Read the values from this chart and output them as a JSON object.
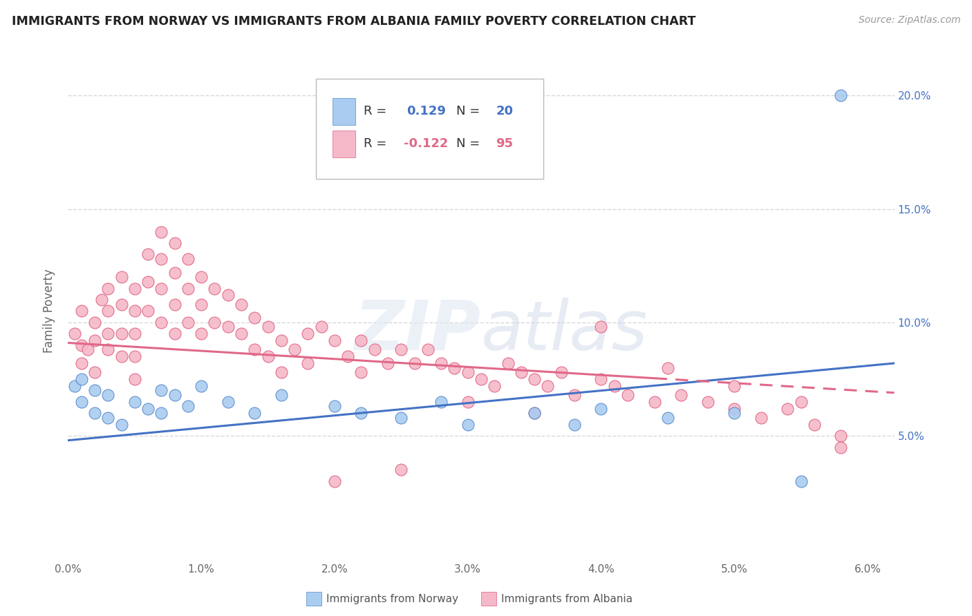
{
  "title": "IMMIGRANTS FROM NORWAY VS IMMIGRANTS FROM ALBANIA FAMILY POVERTY CORRELATION CHART",
  "source": "Source: ZipAtlas.com",
  "xlabel_norway": "Immigrants from Norway",
  "xlabel_albania": "Immigrants from Albania",
  "ylabel": "Family Poverty",
  "xlim": [
    0.0,
    0.062
  ],
  "ylim": [
    -0.005,
    0.215
  ],
  "xticks": [
    0.0,
    0.01,
    0.02,
    0.03,
    0.04,
    0.05,
    0.06
  ],
  "xticklabels": [
    "0.0%",
    "1.0%",
    "2.0%",
    "3.0%",
    "4.0%",
    "5.0%",
    "6.0%"
  ],
  "yticks": [
    0.05,
    0.1,
    0.15,
    0.2
  ],
  "yticklabels": [
    "5.0%",
    "10.0%",
    "15.0%",
    "20.0%"
  ],
  "norway_color": "#aaccf0",
  "albania_color": "#f5b8c8",
  "norway_edge_color": "#5588cc",
  "albania_edge_color": "#e06080",
  "norway_line_color": "#4472c4",
  "albania_line_color": "#e06888",
  "grid_color": "#d8d8d8",
  "background_color": "#ffffff",
  "watermark": "ZIPatlas",
  "norway_line_x0": 0.0,
  "norway_line_x1": 0.062,
  "norway_line_y0": 0.048,
  "norway_line_y1": 0.082,
  "albania_line_x0": 0.0,
  "albania_line_x1": 0.062,
  "albania_line_y0": 0.091,
  "albania_line_y1": 0.069,
  "norway_x": [
    0.0005,
    0.001,
    0.001,
    0.002,
    0.002,
    0.003,
    0.003,
    0.004,
    0.005,
    0.006,
    0.007,
    0.007,
    0.008,
    0.009,
    0.01,
    0.012,
    0.014,
    0.016,
    0.02,
    0.022,
    0.025,
    0.028,
    0.03,
    0.035,
    0.038,
    0.04,
    0.045,
    0.05,
    0.055,
    0.058
  ],
  "norway_y": [
    0.072,
    0.065,
    0.075,
    0.06,
    0.07,
    0.058,
    0.068,
    0.055,
    0.065,
    0.062,
    0.07,
    0.06,
    0.068,
    0.063,
    0.072,
    0.065,
    0.06,
    0.068,
    0.063,
    0.06,
    0.058,
    0.065,
    0.055,
    0.06,
    0.055,
    0.062,
    0.058,
    0.06,
    0.03,
    0.2
  ],
  "albania_x": [
    0.0005,
    0.001,
    0.001,
    0.001,
    0.0015,
    0.002,
    0.002,
    0.002,
    0.0025,
    0.003,
    0.003,
    0.003,
    0.003,
    0.004,
    0.004,
    0.004,
    0.004,
    0.005,
    0.005,
    0.005,
    0.005,
    0.005,
    0.006,
    0.006,
    0.006,
    0.007,
    0.007,
    0.007,
    0.007,
    0.008,
    0.008,
    0.008,
    0.008,
    0.009,
    0.009,
    0.009,
    0.01,
    0.01,
    0.01,
    0.011,
    0.011,
    0.012,
    0.012,
    0.013,
    0.013,
    0.014,
    0.014,
    0.015,
    0.015,
    0.016,
    0.016,
    0.017,
    0.018,
    0.018,
    0.019,
    0.02,
    0.021,
    0.022,
    0.022,
    0.023,
    0.024,
    0.025,
    0.026,
    0.027,
    0.028,
    0.029,
    0.03,
    0.031,
    0.032,
    0.033,
    0.034,
    0.035,
    0.036,
    0.037,
    0.038,
    0.04,
    0.041,
    0.042,
    0.044,
    0.046,
    0.048,
    0.05,
    0.052,
    0.054,
    0.056,
    0.058,
    0.04,
    0.045,
    0.05,
    0.055,
    0.058,
    0.035,
    0.03,
    0.025,
    0.02
  ],
  "albania_y": [
    0.095,
    0.09,
    0.082,
    0.105,
    0.088,
    0.1,
    0.092,
    0.078,
    0.11,
    0.105,
    0.095,
    0.088,
    0.115,
    0.12,
    0.108,
    0.095,
    0.085,
    0.115,
    0.105,
    0.095,
    0.085,
    0.075,
    0.13,
    0.118,
    0.105,
    0.14,
    0.128,
    0.115,
    0.1,
    0.135,
    0.122,
    0.108,
    0.095,
    0.128,
    0.115,
    0.1,
    0.12,
    0.108,
    0.095,
    0.115,
    0.1,
    0.112,
    0.098,
    0.108,
    0.095,
    0.102,
    0.088,
    0.098,
    0.085,
    0.092,
    0.078,
    0.088,
    0.095,
    0.082,
    0.098,
    0.092,
    0.085,
    0.092,
    0.078,
    0.088,
    0.082,
    0.088,
    0.082,
    0.088,
    0.082,
    0.08,
    0.078,
    0.075,
    0.072,
    0.082,
    0.078,
    0.075,
    0.072,
    0.078,
    0.068,
    0.075,
    0.072,
    0.068,
    0.065,
    0.068,
    0.065,
    0.062,
    0.058,
    0.062,
    0.055,
    0.05,
    0.098,
    0.08,
    0.072,
    0.065,
    0.045,
    0.06,
    0.065,
    0.035,
    0.03
  ]
}
